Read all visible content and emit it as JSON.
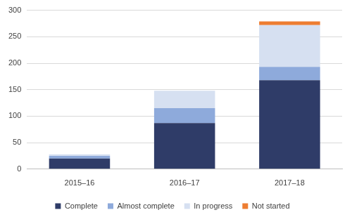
{
  "chart_data": {
    "type": "bar",
    "stacked": true,
    "categories": [
      "2015–16",
      "2016–17",
      "2017–18"
    ],
    "series": [
      {
        "name": "Complete",
        "color": "#2f3c68",
        "values": [
          20,
          87,
          168
        ]
      },
      {
        "name": "Almost complete",
        "color": "#8eaadb",
        "values": [
          5,
          28,
          25
        ]
      },
      {
        "name": "In progress",
        "color": "#d6e0f1",
        "values": [
          3,
          33,
          79
        ]
      },
      {
        "name": "Not started",
        "color": "#ed7d31",
        "values": [
          0,
          0,
          7
        ]
      }
    ],
    "ylim": [
      0,
      300
    ],
    "yticks": [
      0,
      50,
      100,
      150,
      200,
      250,
      300
    ],
    "grid": true,
    "legend": "bottom"
  }
}
